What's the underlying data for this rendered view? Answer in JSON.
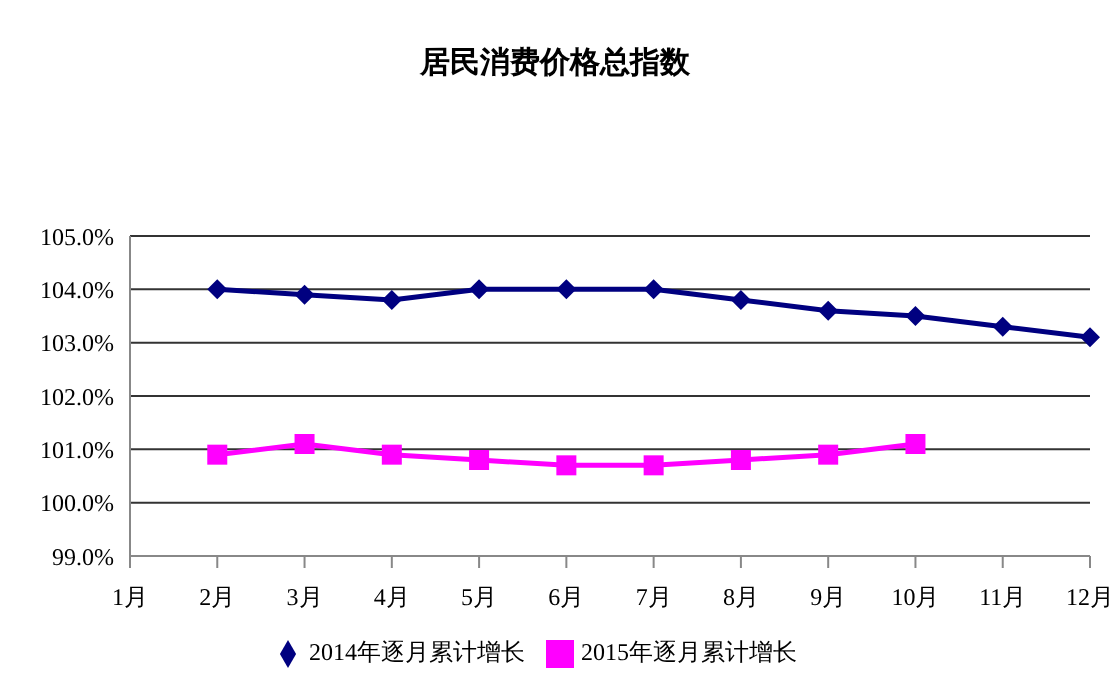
{
  "chart_data": {
    "type": "line",
    "title": "居民消费价格总指数",
    "categories": [
      "1月",
      "2月",
      "3月",
      "4月",
      "5月",
      "6月",
      "7月",
      "8月",
      "9月",
      "10月",
      "11月",
      "12月"
    ],
    "series": [
      {
        "name": "2014年逐月累计增长",
        "color": "#000080",
        "marker": "diamond",
        "values": [
          null,
          104.0,
          103.9,
          103.8,
          104.0,
          104.0,
          104.0,
          103.8,
          103.6,
          103.5,
          103.3,
          103.1
        ]
      },
      {
        "name": "2015年逐月累计增长",
        "color": "#ff00ff",
        "marker": "square",
        "values": [
          null,
          100.9,
          101.1,
          100.9,
          100.8,
          100.7,
          100.7,
          100.8,
          100.9,
          101.1,
          null,
          null
        ]
      }
    ],
    "ylim": [
      99,
      105
    ],
    "yticks": [
      {
        "value": 99,
        "label": "99.0%"
      },
      {
        "value": 100,
        "label": "100.0%"
      },
      {
        "value": 101,
        "label": "101.0%"
      },
      {
        "value": 102,
        "label": "102.0%"
      },
      {
        "value": 103,
        "label": "103.0%"
      },
      {
        "value": 104,
        "label": "104.0%"
      },
      {
        "value": 105,
        "label": "105.0%"
      }
    ],
    "grid": "y",
    "legend": "bottom"
  }
}
